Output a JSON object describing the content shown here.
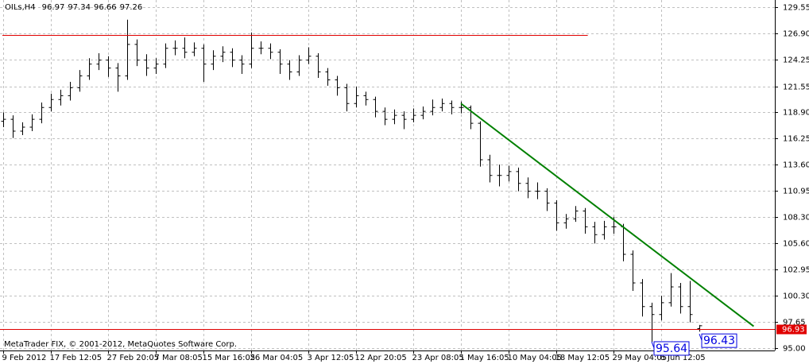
{
  "chart_data": {
    "type": "ohlc",
    "title": "OILs,H4",
    "footer": "MetaTrader FIX, © 2001-2012, MetaQuotes Software Corp.",
    "color": "#000000",
    "grid": true,
    "ylim": [
      94.75,
      130.3
    ],
    "yticks": [
      129.55,
      {
        "value": 126.9,
        "label": "126.90"
      },
      124.25,
      121.55,
      {
        "value": 118.9,
        "label": "118.90"
      },
      116.25,
      {
        "value": 113.6,
        "label": "113.60"
      },
      110.95,
      {
        "value": 108.3,
        "label": "108.30"
      },
      {
        "value": 105.6,
        "label": "105.60"
      },
      102.95,
      {
        "value": 100.3,
        "label": "100.30"
      },
      97.65,
      {
        "value": 95,
        "label": "95.00"
      }
    ],
    "categories": [
      "9 Feb 2012",
      null,
      null,
      null,
      null,
      "17 Feb 12:05",
      null,
      null,
      null,
      null,
      null,
      "27 Feb 20:05",
      null,
      null,
      null,
      null,
      "7 Mar 08:05",
      null,
      null,
      null,
      null,
      "15 Mar 16:05",
      null,
      null,
      null,
      null,
      "26 Mar 04:05",
      null,
      null,
      null,
      null,
      null,
      "3 Apr 12:05",
      null,
      null,
      null,
      null,
      "12 Apr 20:05",
      null,
      null,
      null,
      null,
      null,
      "23 Apr 08:05",
      null,
      null,
      null,
      null,
      "1 May 16:05",
      null,
      null,
      null,
      null,
      "10 May 04:05",
      null,
      null,
      null,
      null,
      "18 May 12:05",
      null,
      null,
      null,
      null,
      null,
      "29 May 04:05",
      null,
      null,
      null,
      null,
      "6 Jun 12:05",
      null,
      null,
      null,
      null
    ],
    "ohlc": [
      [
        118.0,
        118.9,
        117.4,
        118.2
      ],
      [
        118.2,
        118.6,
        116.3,
        117.0
      ],
      [
        117.0,
        117.9,
        116.6,
        117.4
      ],
      [
        117.4,
        118.7,
        117.0,
        118.2
      ],
      [
        118.2,
        119.9,
        117.8,
        119.4
      ],
      [
        119.4,
        120.8,
        119.0,
        120.2
      ],
      [
        120.2,
        121.2,
        119.6,
        120.6
      ],
      [
        120.6,
        122.0,
        120.1,
        121.4
      ],
      [
        121.4,
        123.2,
        121.0,
        122.6
      ],
      [
        122.6,
        124.4,
        122.2,
        123.8
      ],
      [
        123.8,
        124.9,
        123.2,
        124.2
      ],
      [
        124.2,
        124.6,
        122.5,
        123.4
      ],
      [
        123.4,
        123.9,
        121.0,
        122.6
      ],
      [
        122.6,
        128.3,
        122.2,
        125.8
      ],
      [
        125.8,
        126.3,
        123.6,
        124.2
      ],
      [
        124.2,
        124.8,
        122.6,
        123.4
      ],
      [
        123.4,
        124.4,
        122.8,
        123.8
      ],
      [
        123.8,
        125.9,
        123.4,
        125.4
      ],
      [
        125.4,
        126.2,
        124.7,
        125.4
      ],
      [
        125.4,
        126.5,
        124.4,
        125.0
      ],
      [
        125.0,
        126.0,
        124.6,
        125.4
      ],
      [
        125.4,
        125.8,
        122.0,
        123.8
      ],
      [
        123.8,
        125.2,
        123.2,
        124.6
      ],
      [
        124.6,
        125.6,
        124.0,
        125.0
      ],
      [
        125.0,
        125.4,
        123.5,
        124.2
      ],
      [
        124.2,
        124.7,
        122.8,
        123.8
      ],
      [
        123.8,
        127.0,
        123.4,
        125.4
      ],
      [
        125.4,
        126.1,
        124.8,
        125.4
      ],
      [
        125.4,
        125.9,
        124.3,
        125.0
      ],
      [
        125.0,
        125.3,
        122.8,
        123.8
      ],
      [
        123.8,
        124.2,
        122.2,
        123.0
      ],
      [
        123.0,
        124.7,
        122.6,
        124.2
      ],
      [
        124.2,
        125.5,
        123.8,
        124.6
      ],
      [
        124.6,
        124.9,
        122.4,
        123.0
      ],
      [
        123.0,
        123.4,
        121.6,
        122.2
      ],
      [
        122.2,
        122.6,
        120.6,
        121.4
      ],
      [
        121.4,
        121.8,
        119.0,
        119.8
      ],
      [
        119.8,
        121.5,
        119.4,
        120.6
      ],
      [
        120.6,
        121.0,
        119.6,
        120.2
      ],
      [
        120.2,
        120.5,
        118.4,
        119.0
      ],
      [
        119.0,
        119.4,
        117.6,
        118.2
      ],
      [
        118.2,
        119.2,
        117.7,
        118.6
      ],
      [
        118.6,
        119.0,
        117.2,
        118.2
      ],
      [
        118.2,
        119.3,
        117.9,
        118.6
      ],
      [
        118.6,
        119.5,
        118.2,
        119.0
      ],
      [
        119.0,
        120.2,
        118.6,
        119.4
      ],
      [
        119.4,
        120.3,
        119.0,
        119.8
      ],
      [
        119.8,
        120.1,
        118.7,
        119.4
      ],
      [
        119.4,
        120.0,
        118.8,
        119.4
      ],
      [
        119.4,
        119.6,
        117.2,
        117.8
      ],
      [
        117.8,
        118.0,
        113.4,
        114.1
      ],
      [
        114.1,
        114.6,
        111.8,
        112.5
      ],
      [
        112.5,
        113.6,
        111.4,
        112.5
      ],
      [
        112.5,
        113.5,
        111.9,
        112.9
      ],
      [
        112.9,
        113.3,
        110.9,
        111.7
      ],
      [
        111.7,
        112.3,
        110.2,
        110.9
      ],
      [
        110.9,
        111.8,
        110.1,
        110.9
      ],
      [
        110.9,
        111.2,
        108.9,
        109.7
      ],
      [
        109.7,
        110.0,
        106.9,
        107.7
      ],
      [
        107.7,
        108.6,
        107.1,
        108.1
      ],
      [
        108.1,
        109.4,
        107.8,
        108.9
      ],
      [
        108.9,
        109.2,
        106.6,
        107.3
      ],
      [
        107.3,
        107.8,
        105.6,
        106.5
      ],
      [
        106.5,
        107.9,
        106.0,
        107.3
      ],
      [
        107.3,
        108.3,
        106.6,
        107.3
      ],
      [
        107.3,
        107.6,
        103.8,
        104.5
      ],
      [
        104.5,
        104.9,
        100.8,
        101.6
      ],
      [
        101.6,
        102.0,
        98.2,
        99.2
      ],
      [
        99.2,
        99.6,
        95.64,
        98.4
      ],
      [
        98.4,
        100.3,
        97.8,
        99.6
      ],
      [
        99.6,
        102.6,
        99.2,
        101.2
      ],
      [
        101.2,
        101.6,
        98.5,
        99.2
      ],
      [
        99.2,
        101.8,
        97.6,
        98.4
      ],
      [
        96.97,
        97.34,
        96.66,
        97.26
      ]
    ],
    "hline": {
      "value": 126.72,
      "x": [
        0,
        61.3
      ],
      "color": "#e00000"
    },
    "bid": {
      "value": 96.93,
      "color": "#e00000"
    },
    "trendline": {
      "x": [
        48,
        78.7
      ],
      "y": [
        119.8,
        97.2
      ],
      "color": "#008000"
    },
    "annotations": [
      {
        "x": 68,
        "value": 95.64
      },
      {
        "x": 73,
        "value": 96.43
      }
    ],
    "annotation_color": "#0000e0"
  }
}
